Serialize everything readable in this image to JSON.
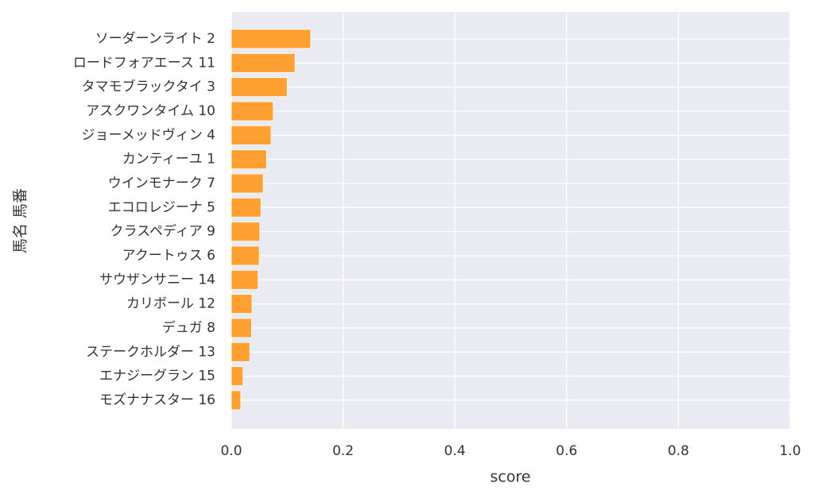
{
  "chart_data": {
    "type": "barh",
    "xlabel": "score",
    "ylabel": "馬名 馬番",
    "categories": [
      "ソーダーンライト 2",
      "ロードフォアエース 11",
      "タマモブラックタイ 3",
      "アスクワンタイム 10",
      "ジョーメッドヴィン 4",
      "カンティーユ 1",
      "ウインモナーク 7",
      "エコロレジーナ 5",
      "クラスペディア 9",
      "アクートゥス 6",
      "サウザンサニー 14",
      "カリボール 12",
      "デュガ 8",
      "ステークホルダー 13",
      "エナジーグラン 15",
      "モズナナスター 16"
    ],
    "values": [
      0.142,
      0.114,
      0.1,
      0.075,
      0.071,
      0.063,
      0.057,
      0.053,
      0.051,
      0.05,
      0.048,
      0.037,
      0.036,
      0.033,
      0.021,
      0.017
    ],
    "color": "#ffa033",
    "xlim": [
      0,
      1
    ],
    "xticks": [
      {
        "value": 0,
        "label": "0.0"
      },
      0.2,
      0.4,
      0.6,
      0.8,
      {
        "value": 1,
        "label": "1.0"
      }
    ],
    "grid": true
  }
}
